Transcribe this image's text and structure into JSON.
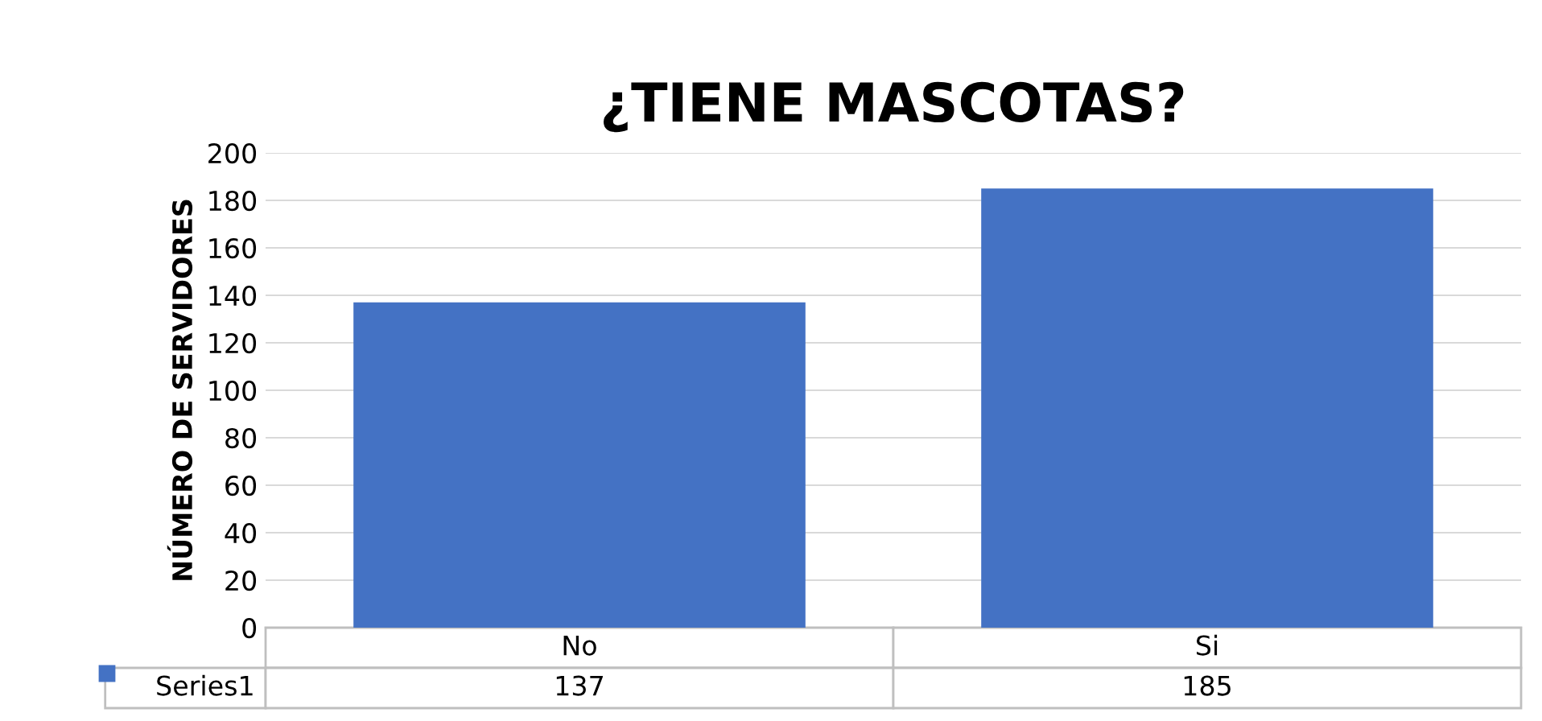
{
  "chart_data": {
    "type": "bar",
    "title": "¿TIENE MASCOTAS?",
    "ylabel": "NÚMERO DE SERVIDORES",
    "categories": [
      "No",
      "Si"
    ],
    "series": [
      {
        "name": "Series1",
        "color": "#4472c4",
        "values": [
          137,
          185
        ]
      }
    ],
    "ylim": [
      0,
      200
    ],
    "yticks": [
      0,
      20,
      40,
      60,
      80,
      100,
      120,
      140,
      160,
      180,
      200
    ],
    "grid": "y",
    "data_labels": true,
    "legend": "bottom"
  }
}
